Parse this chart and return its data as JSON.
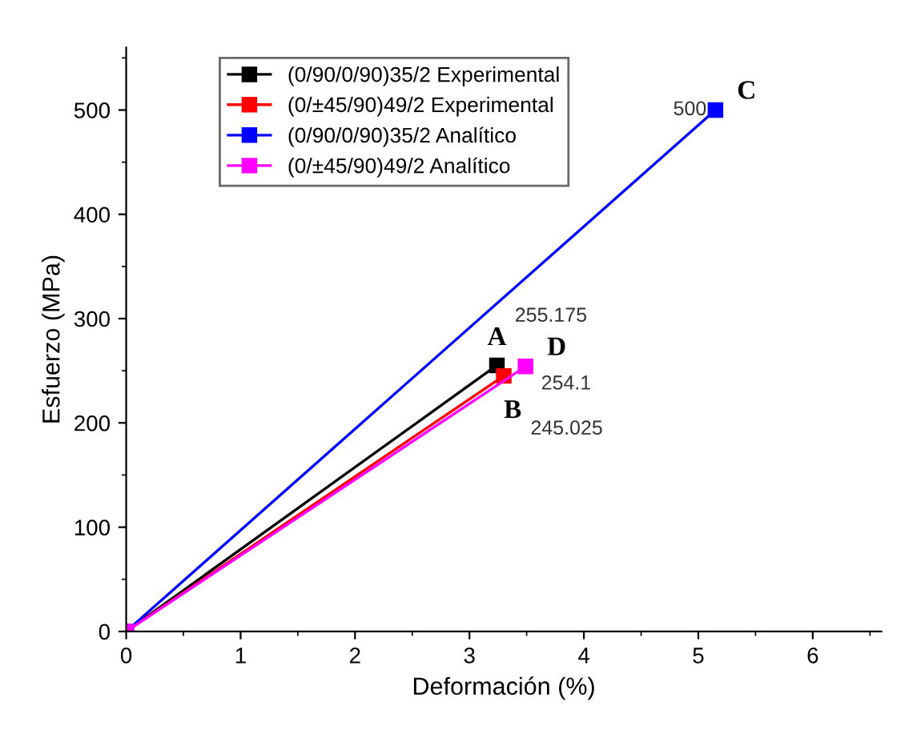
{
  "chart_data": {
    "type": "line",
    "xlabel": "Deformación (%)",
    "ylabel": "Esfuerzo (MPa)",
    "xlim": [
      0,
      6.6
    ],
    "ylim": [
      0,
      560
    ],
    "xticks": [
      0,
      1,
      2,
      3,
      4,
      5,
      6
    ],
    "yticks": [
      0,
      100,
      200,
      300,
      400,
      500
    ],
    "marker": "square",
    "line_style": "solid",
    "legend": "top left",
    "grid": false,
    "series": [
      {
        "name": "(0/90/0/90)35/2 Experimental",
        "color": "#000000",
        "x": [
          0,
          3.24
        ],
        "values": [
          0,
          255.175
        ],
        "value_labels": [
          null,
          "255.175"
        ]
      },
      {
        "name": "(0/±45/90)49/2 Experimental",
        "color": "#ff0000",
        "x": [
          0,
          3.3
        ],
        "values": [
          0,
          245.025
        ],
        "value_labels": [
          null,
          "245.025"
        ]
      },
      {
        "name": "(0/90/0/90)35/2 Analítico",
        "color": "#0000ff",
        "x": [
          0,
          5.15
        ],
        "values": [
          0,
          500
        ],
        "value_labels": [
          null,
          "500"
        ]
      },
      {
        "name": "(0/±45/90)49/2 Analítico",
        "color": "#ff00ff",
        "x": [
          0,
          3.49
        ],
        "values": [
          0,
          254.1
        ],
        "value_labels": [
          null,
          "254.1"
        ]
      }
    ],
    "annotations": [
      {
        "text": "A",
        "x": 3.24,
        "y": 255.175
      },
      {
        "text": "B",
        "x": 3.3,
        "y": 245.025
      },
      {
        "text": "C",
        "x": 5.15,
        "y": 500
      },
      {
        "text": "D",
        "x": 3.49,
        "y": 254.1
      }
    ]
  }
}
